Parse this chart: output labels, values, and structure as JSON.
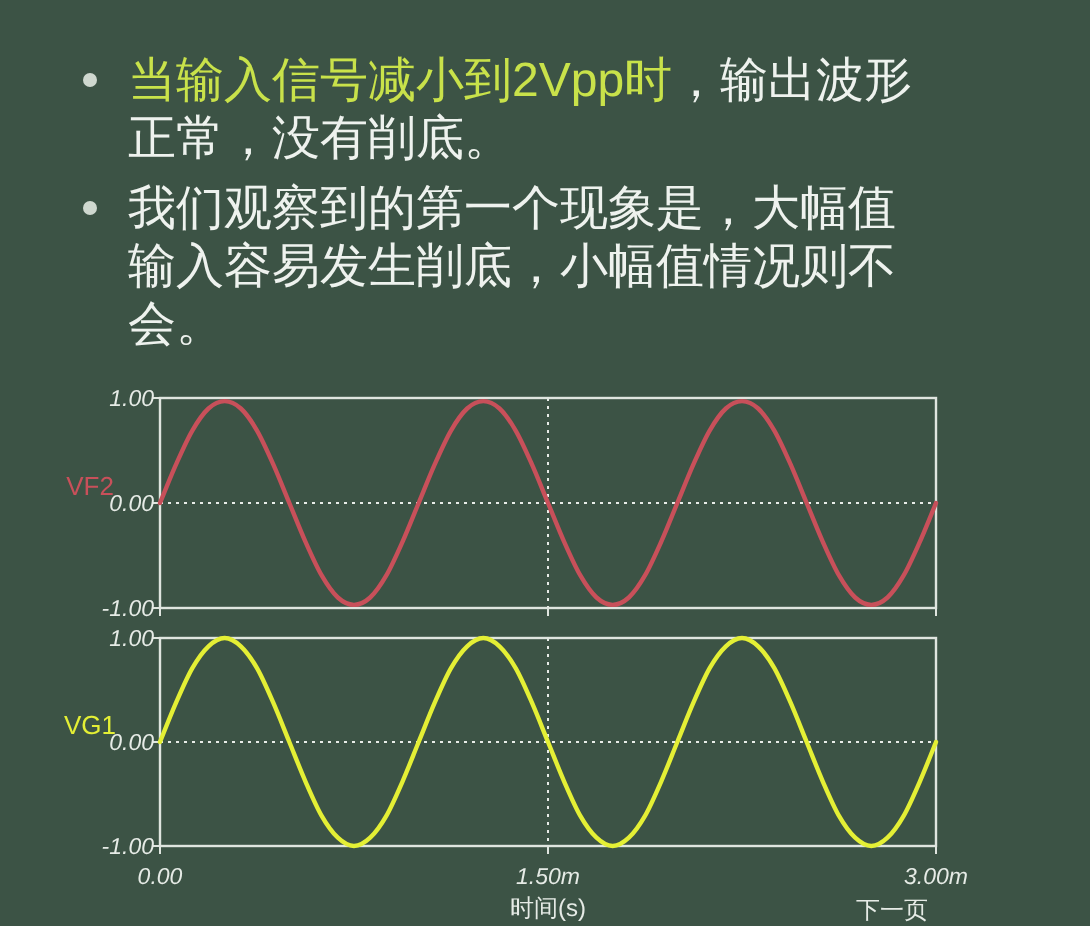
{
  "chart_data": [
    {
      "type": "line",
      "annotations": [
        "当输入信号减小到2Vpp时",
        "，输出波形正常，没有削底。",
        "我们观察到的第一个现象是，大幅值输入容易发生削底，小幅值情况则不会。"
      ],
      "x": [
        0,
        0.0625,
        0.125,
        0.1875,
        0.25,
        0.3125,
        0.375,
        0.4375,
        0.5,
        0.5625,
        0.625,
        0.6875,
        0.75,
        0.8125,
        0.875,
        0.9375,
        1,
        1.0625,
        1.125,
        1.1875,
        1.25,
        1.3125,
        1.375,
        1.4375,
        1.5,
        1.5625,
        1.625,
        1.6875,
        1.75,
        1.8125,
        1.875,
        1.9375,
        2,
        2.0625,
        2.125,
        2.1875,
        2.25,
        2.3125,
        2.375,
        2.4375,
        2.5,
        2.5625,
        2.625,
        2.6875,
        2.75,
        2.8125,
        2.875,
        2.9375,
        3
      ],
      "series": [
        {
          "name": "VF2",
          "color": "#c8505a",
          "values": [
            0,
            0.37,
            0.69,
            0.9,
            0.97,
            0.9,
            0.69,
            0.37,
            0,
            -0.37,
            -0.69,
            -0.9,
            -0.97,
            -0.9,
            -0.69,
            -0.37,
            0,
            0.37,
            0.69,
            0.9,
            0.97,
            0.9,
            0.69,
            0.37,
            0,
            -0.37,
            -0.69,
            -0.9,
            -0.97,
            -0.9,
            -0.69,
            -0.37,
            0,
            0.37,
            0.69,
            0.9,
            0.97,
            0.9,
            0.69,
            0.37,
            0,
            -0.37,
            -0.69,
            -0.9,
            -0.97,
            -0.9,
            -0.69,
            -0.37,
            0
          ]
        }
      ],
      "xlim": [
        0,
        3
      ],
      "xticks": [
        {
          "value": 0,
          "label": null
        },
        {
          "value": 1.5,
          "label": null
        },
        {
          "value": 3,
          "label": null
        }
      ],
      "ylim": [
        -1,
        1
      ],
      "yticks": [
        {
          "value": -1,
          "label": "-1.00"
        },
        {
          "value": 0,
          "label": "0.00"
        },
        {
          "value": 1,
          "label": "1.00"
        }
      ],
      "tick_labels": "y",
      "grid": true,
      "line_style": "solid",
      "marker": "none"
    },
    {
      "type": "line",
      "xlabel": "时间(s)",
      "annotations": [
        "下一页"
      ],
      "x": [
        0,
        0.0625,
        0.125,
        0.1875,
        0.25,
        0.3125,
        0.375,
        0.4375,
        0.5,
        0.5625,
        0.625,
        0.6875,
        0.75,
        0.8125,
        0.875,
        0.9375,
        1,
        1.0625,
        1.125,
        1.1875,
        1.25,
        1.3125,
        1.375,
        1.4375,
        1.5,
        1.5625,
        1.625,
        1.6875,
        1.75,
        1.8125,
        1.875,
        1.9375,
        2,
        2.0625,
        2.125,
        2.1875,
        2.25,
        2.3125,
        2.375,
        2.4375,
        2.5,
        2.5625,
        2.625,
        2.6875,
        2.75,
        2.8125,
        2.875,
        2.9375,
        3
      ],
      "series": [
        {
          "name": "VG1",
          "color": "#e4ef35",
          "values": [
            0,
            0.38,
            0.71,
            0.92,
            1,
            0.92,
            0.71,
            0.38,
            0,
            -0.38,
            -0.71,
            -0.92,
            -1,
            -0.92,
            -0.71,
            -0.38,
            0,
            0.38,
            0.71,
            0.92,
            1,
            0.92,
            0.71,
            0.38,
            0,
            -0.38,
            -0.71,
            -0.92,
            -1,
            -0.92,
            -0.71,
            -0.38,
            0,
            0.38,
            0.71,
            0.92,
            1,
            0.92,
            0.71,
            0.38,
            0,
            -0.38,
            -0.71,
            -0.92,
            -1,
            -0.92,
            -0.71,
            -0.38,
            0
          ]
        }
      ],
      "xlim": [
        0,
        3
      ],
      "xticks": [
        {
          "value": 0,
          "label": "0.00"
        },
        {
          "value": 1.5,
          "label": "1.50m"
        },
        {
          "value": 3,
          "label": "3.00m"
        }
      ],
      "ylim": [
        -1,
        1
      ],
      "yticks": [
        {
          "value": -1,
          "label": "-1.00"
        },
        {
          "value": 0,
          "label": "0.00"
        },
        {
          "value": 1,
          "label": "1.00"
        }
      ],
      "grid": true,
      "line_style": "solid",
      "marker": "none"
    }
  ]
}
